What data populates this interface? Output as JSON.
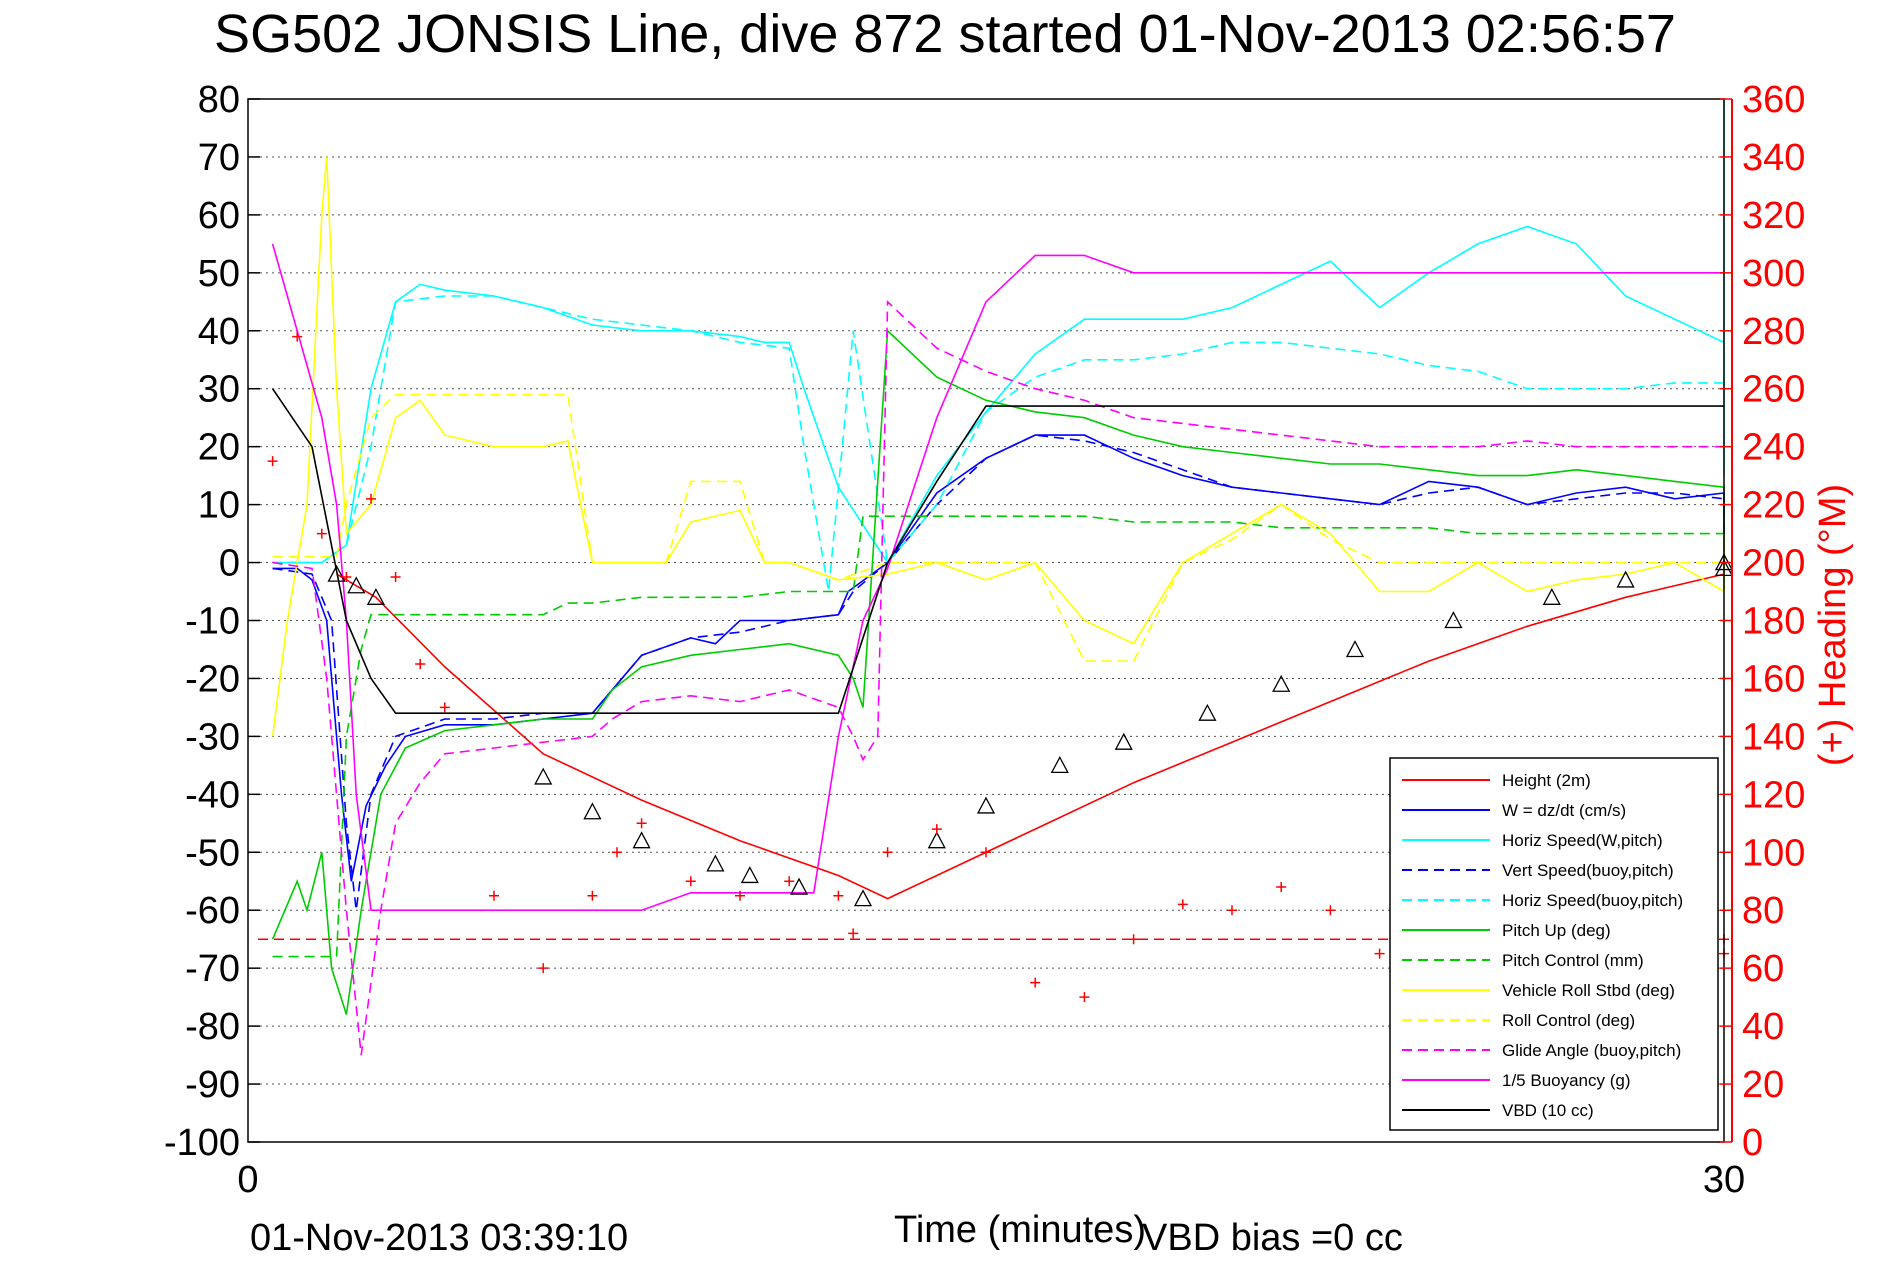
{
  "chart_data": {
    "type": "line",
    "title": "SG502 JONSIS Line, dive 872 started 01-Nov-2013 02:56:57",
    "xlabel": "Time (minutes)",
    "ylabel": "",
    "y2label": "(+) Heading (°M)",
    "footer_left": "01-Nov-2013 03:39:10",
    "footer_right": "VBD bias =0 cc",
    "xlim": [
      0,
      30
    ],
    "ylim": [
      -100,
      80
    ],
    "y2lim": [
      0,
      360
    ],
    "x_ticks": [
      "0",
      "30"
    ],
    "y_ticks": [
      "80",
      "70",
      "60",
      "50",
      "40",
      "30",
      "20",
      "10",
      "0",
      "-10",
      "-20",
      "-30",
      "-40",
      "-50",
      "-60",
      "-70",
      "-80",
      "-90",
      "-100"
    ],
    "y2_ticks": [
      "360",
      "340",
      "320",
      "300",
      "280",
      "260",
      "240",
      "220",
      "200",
      "180",
      "160",
      "140",
      "120",
      "100",
      "80",
      "60",
      "40",
      "20",
      "0"
    ],
    "grid": true,
    "legend_position": "bottom-right",
    "colors": {
      "height": "#ff0000",
      "w": "#0000ff",
      "horiz": "#00ffff",
      "pitch": "#00cc00",
      "roll": "#ffff00",
      "glide": "#ff00ff",
      "vbd": "#000000",
      "heading": "#ff0000"
    },
    "series": [
      {
        "name": "Height (2m)",
        "color": "#ff0000",
        "dash": false,
        "x": [
          1.8,
          2.2,
          2.6,
          4,
          6,
          8,
          10,
          12,
          13,
          14,
          16,
          18,
          20,
          22,
          24,
          26,
          28,
          30.5,
          31.5
        ],
        "y": [
          -2,
          -4,
          -6,
          -18,
          -33,
          -41,
          -48,
          -54,
          -58,
          -54,
          -46,
          -38,
          -31,
          -24,
          -17,
          -11,
          -6,
          -2,
          -0.5
        ]
      },
      {
        "name": "W = dz/dt (cm/s)",
        "color": "#0000ff",
        "dash": false,
        "x": [
          0.5,
          1,
          1.3,
          1.6,
          1.9,
          2.1,
          2.4,
          2.8,
          3.2,
          4,
          5,
          6,
          7,
          7.4,
          8,
          9,
          9.5,
          10,
          11,
          12,
          12.2,
          13,
          14,
          15,
          16,
          17,
          17.5,
          18,
          19,
          20,
          21,
          22,
          23,
          24,
          25,
          26,
          27,
          28,
          29,
          30,
          31,
          31.5
        ],
        "y": [
          -1,
          -1,
          -3,
          -10,
          -40,
          -55,
          -42,
          -35,
          -30,
          -28,
          -28,
          -27,
          -26,
          -22,
          -16,
          -13,
          -14,
          -10,
          -10,
          -9,
          -5,
          0,
          12,
          18,
          22,
          22,
          20,
          18,
          15,
          13,
          12,
          11,
          10,
          14,
          13,
          10,
          12,
          13,
          11,
          12,
          12,
          0
        ]
      },
      {
        "name": "Horiz Speed(W,pitch)",
        "color": "#00ffff",
        "dash": false,
        "x": [
          0.5,
          1.5,
          2,
          2.5,
          3,
          3.5,
          4,
          5,
          6,
          7,
          8,
          9,
          10,
          10.5,
          11,
          11.3,
          12,
          13,
          14,
          15,
          16,
          17,
          18,
          19,
          20,
          21,
          22,
          23,
          24,
          25,
          26,
          27,
          28,
          29,
          30,
          30.5,
          31.3,
          31.5
        ],
        "y": [
          0,
          0,
          3,
          30,
          45,
          48,
          47,
          46,
          44,
          41,
          40,
          40,
          39,
          38,
          38,
          30,
          13,
          0,
          15,
          26,
          36,
          42,
          42,
          42,
          44,
          48,
          52,
          44,
          50,
          55,
          58,
          55,
          46,
          42,
          38,
          30,
          15,
          80
        ]
      },
      {
        "name": "Vert Speed(buoy,pitch)",
        "color": "#0000ff",
        "dash": true,
        "x": [
          0.5,
          1.3,
          1.7,
          2,
          2.2,
          2.5,
          3,
          4,
          5,
          6,
          7,
          7.4,
          8,
          9,
          10,
          11,
          12,
          12.3,
          13,
          14,
          15,
          16,
          17,
          18,
          19,
          20,
          21,
          22,
          23,
          24,
          25,
          26,
          27,
          28,
          29,
          30,
          31,
          31.5
        ],
        "y": [
          -1,
          -2,
          -10,
          -45,
          -60,
          -40,
          -30,
          -27,
          -27,
          -26,
          -26,
          -22,
          -16,
          -13,
          -12,
          -10,
          -9,
          -5,
          0,
          10,
          18,
          22,
          21,
          19,
          16,
          13,
          12,
          11,
          10,
          12,
          13,
          10,
          11,
          12,
          12,
          11,
          12,
          0
        ]
      },
      {
        "name": "Horiz Speed(buoy,pitch)",
        "color": "#00ffff",
        "dash": true,
        "x": [
          0.5,
          1.5,
          2,
          2.5,
          3,
          4,
          5,
          6,
          7,
          8,
          9,
          10,
          11,
          11.3,
          11.8,
          12.3,
          13,
          14,
          15,
          16,
          17,
          18,
          19,
          20,
          21,
          22,
          23,
          24,
          25,
          26,
          27,
          28,
          29,
          30,
          31,
          31.5
        ],
        "y": [
          0,
          0,
          3,
          20,
          45,
          46,
          46,
          44,
          42,
          41,
          40,
          38,
          37,
          20,
          -5,
          40,
          0,
          10,
          26,
          32,
          35,
          35,
          36,
          38,
          38,
          37,
          36,
          34,
          33,
          30,
          30,
          30,
          31,
          31,
          30,
          30
        ]
      },
      {
        "name": "Pitch Up (deg)",
        "color": "#00cc00",
        "dash": false,
        "x": [
          0.5,
          1,
          1.2,
          1.5,
          1.7,
          2,
          2.3,
          2.7,
          3.2,
          4,
          5,
          6,
          7,
          7.4,
          8,
          9,
          10,
          11,
          12,
          12.3,
          12.5,
          13,
          14,
          15,
          16,
          17,
          18,
          19,
          20,
          21,
          22,
          23,
          24,
          25,
          26,
          27,
          28,
          29,
          30,
          31,
          31.5
        ],
        "y": [
          -65,
          -55,
          -60,
          -50,
          -70,
          -78,
          -60,
          -40,
          -32,
          -29,
          -28,
          -27,
          -27,
          -22,
          -18,
          -16,
          -15,
          -14,
          -16,
          -20,
          -25,
          40,
          32,
          28,
          26,
          25,
          22,
          20,
          19,
          18,
          17,
          17,
          16,
          15,
          15,
          16,
          15,
          14,
          13,
          13,
          -5
        ]
      },
      {
        "name": "Pitch Control (mm)",
        "color": "#00cc00",
        "dash": true,
        "x": [
          0.5,
          1.8,
          2,
          2.3,
          2.5,
          3,
          4,
          5,
          6,
          6.5,
          7,
          8,
          9,
          10,
          11,
          12,
          12.3,
          12.5,
          13,
          14,
          15,
          16,
          17,
          18,
          19,
          20,
          21,
          22,
          23,
          24,
          25,
          26,
          27,
          28,
          29,
          30,
          31,
          31.5
        ],
        "y": [
          -68,
          -68,
          -30,
          -15,
          -9,
          -9,
          -9,
          -9,
          -9,
          -7,
          -7,
          -6,
          -6,
          -6,
          -5,
          -5,
          -5,
          8,
          8,
          8,
          8,
          8,
          8,
          7,
          7,
          7,
          6,
          6,
          6,
          6,
          5,
          5,
          5,
          5,
          5,
          5,
          5,
          5
        ]
      },
      {
        "name": "Vehicle Roll Stbd (deg)",
        "color": "#ffff00",
        "dash": false,
        "x": [
          0.5,
          0.8,
          1.2,
          1.5,
          1.6,
          1.8,
          2,
          2.5,
          3,
          3.5,
          4,
          5,
          6,
          6.5,
          7,
          8,
          8.5,
          9,
          10,
          10.5,
          11,
          12,
          13,
          14,
          15,
          16,
          17,
          18,
          19,
          20,
          21,
          22,
          23,
          24,
          25,
          26,
          27,
          28,
          29,
          30,
          31,
          31.5
        ],
        "y": [
          -30,
          -10,
          10,
          60,
          70,
          30,
          5,
          10,
          25,
          28,
          22,
          20,
          20,
          21,
          0,
          0,
          0,
          7,
          9,
          0,
          0,
          -3,
          -2,
          0,
          -3,
          0,
          -10,
          -14,
          0,
          5,
          10,
          5,
          -5,
          -5,
          0,
          -5,
          -3,
          -2,
          0,
          -5,
          5,
          -5
        ]
      },
      {
        "name": "Roll Control (deg)",
        "color": "#ffff00",
        "dash": true,
        "x": [
          0.5,
          1.8,
          2,
          2.5,
          3,
          4,
          5,
          6,
          6.5,
          7,
          8,
          8.5,
          9,
          10,
          10.5,
          11,
          12,
          13,
          14,
          15,
          16,
          17,
          18,
          19,
          20,
          21,
          22,
          23,
          24,
          25,
          26,
          27,
          28,
          29,
          30,
          31,
          31.5
        ],
        "y": [
          1,
          1,
          10,
          25,
          29,
          29,
          29,
          29,
          29,
          0,
          0,
          0,
          14,
          14,
          0,
          0,
          -3,
          0,
          0,
          0,
          0,
          -17,
          -17,
          0,
          4,
          10,
          4,
          0,
          0,
          0,
          0,
          0,
          0,
          0,
          0,
          0,
          0
        ]
      },
      {
        "name": "Glide Angle (buoy,pitch)",
        "color": "#ff00ff",
        "dash": true,
        "x": [
          0.5,
          1.3,
          1.6,
          2,
          2.3,
          2.7,
          3,
          3.5,
          4,
          5,
          6,
          7,
          7.4,
          8,
          9,
          10,
          11,
          12,
          12.3,
          12.5,
          12.8,
          13,
          14,
          15,
          16,
          17,
          18,
          19,
          20,
          21,
          22,
          23,
          24,
          25,
          26,
          27,
          28,
          29,
          30,
          31,
          31.5
        ],
        "y": [
          0,
          -1,
          -20,
          -60,
          -85,
          -60,
          -45,
          -38,
          -33,
          -32,
          -31,
          -30,
          -27,
          -24,
          -23,
          -24,
          -22,
          -25,
          -30,
          -34,
          -30,
          45,
          37,
          33,
          30,
          28,
          25,
          24,
          23,
          22,
          21,
          20,
          20,
          20,
          21,
          20,
          20,
          20,
          20,
          20,
          20
        ]
      },
      {
        "name": "1/5 Buoyancy (g)",
        "color": "#ff00ff",
        "dash": false,
        "x": [
          0.5,
          1,
          1.5,
          1.8,
          2,
          2.2,
          2.5,
          3,
          4,
          5,
          6,
          7,
          7.4,
          8,
          9,
          10,
          11,
          11.5,
          12,
          12.5,
          13,
          14,
          15,
          16,
          16.5,
          17,
          18,
          19,
          20,
          21,
          22,
          23,
          24,
          25,
          26,
          27,
          28,
          29,
          30,
          31,
          31.5
        ],
        "y": [
          55,
          40,
          25,
          10,
          -10,
          -40,
          -60,
          -60,
          -60,
          -60,
          -60,
          -60,
          -60,
          -60,
          -57,
          -57,
          -57,
          -57,
          -30,
          -10,
          -1,
          25,
          45,
          53,
          53,
          53,
          50,
          50,
          50,
          50,
          50,
          50,
          50,
          50,
          50,
          50,
          50,
          50,
          50,
          50,
          50
        ]
      },
      {
        "name": "VBD (10 cc)",
        "color": "#000000",
        "dash": false,
        "x": [
          0.5,
          1.3,
          2,
          2.5,
          3,
          4,
          6,
          8,
          10,
          12,
          13,
          14,
          15,
          16,
          17,
          18,
          20,
          22,
          24,
          26,
          28,
          30,
          31,
          31.5
        ],
        "y": [
          30,
          20,
          -10,
          -20,
          -26,
          -26,
          -26,
          -26,
          -26,
          -26,
          0,
          14,
          27,
          27,
          27,
          27,
          27,
          27,
          27,
          27,
          27,
          27,
          27,
          27
        ]
      }
    ],
    "heading_series": {
      "name": "Heading",
      "x": [
        0.5,
        1,
        1.5,
        2,
        2.5,
        3,
        3.5,
        4,
        5,
        6,
        7,
        7.5,
        8,
        9,
        10,
        11,
        12,
        12.3,
        13,
        14,
        15,
        16,
        17,
        18,
        19,
        20,
        21,
        22,
        23,
        24,
        25,
        26,
        27,
        28,
        29,
        30,
        31
      ],
      "y": [
        235,
        278,
        210,
        195,
        222,
        195,
        165,
        150,
        85,
        60,
        85,
        100,
        110,
        90,
        85,
        90,
        85,
        72,
        100,
        108,
        100,
        55,
        50,
        70,
        82,
        80,
        88,
        80,
        65,
        55,
        60,
        55,
        75,
        60,
        60,
        70,
        65
      ]
    },
    "reference_line": {
      "name": "Heading target",
      "y2": 70
    },
    "markers": {
      "x": [
        1.8,
        2.2,
        2.6,
        6,
        7,
        8,
        9.5,
        10.2,
        11.2,
        12.5,
        14,
        15,
        16.5,
        17.8,
        19.5,
        21,
        22.5,
        24.5,
        26.5,
        28,
        30,
        31.5
      ],
      "y": [
        -2,
        -4,
        -6,
        -37,
        -43,
        -48,
        -52,
        -54,
        -56,
        -58,
        -48,
        -42,
        -35,
        -31,
        -26,
        -21,
        -15,
        -10,
        -6,
        -3,
        -1,
        0
      ]
    },
    "legend": [
      {
        "label": "Height (2m)",
        "color": "#ff0000",
        "dash": false
      },
      {
        "label": "W = dz/dt (cm/s)",
        "color": "#0000ff",
        "dash": false
      },
      {
        "label": "Horiz Speed(W,pitch)",
        "color": "#00ffff",
        "dash": false
      },
      {
        "label": "Vert Speed(buoy,pitch)",
        "color": "#0000ff",
        "dash": true
      },
      {
        "label": "Horiz Speed(buoy,pitch)",
        "color": "#00ffff",
        "dash": true
      },
      {
        "label": "Pitch Up (deg)",
        "color": "#00cc00",
        "dash": false
      },
      {
        "label": "Pitch Control (mm)",
        "color": "#00cc00",
        "dash": true
      },
      {
        "label": "Vehicle Roll Stbd (deg)",
        "color": "#ffff00",
        "dash": false
      },
      {
        "label": "Roll Control (deg)",
        "color": "#ffff00",
        "dash": true
      },
      {
        "label": "Glide Angle (buoy,pitch)",
        "color": "#ff00ff",
        "dash": true
      },
      {
        "label": "1/5 Buoyancy (g)",
        "color": "#ff00ff",
        "dash": false
      },
      {
        "label": "VBD (10 cc)",
        "color": "#000000",
        "dash": false
      }
    ]
  }
}
